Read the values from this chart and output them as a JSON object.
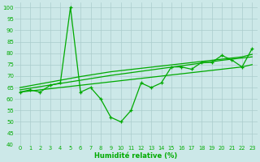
{
  "xlabel": "Humidité relative (%)",
  "bg_color": "#cce8e8",
  "grid_color": "#aacccc",
  "line_color": "#00aa00",
  "xlim": [
    -0.5,
    23.5
  ],
  "ylim": [
    40,
    102
  ],
  "yticks": [
    40,
    45,
    50,
    55,
    60,
    65,
    70,
    75,
    80,
    85,
    90,
    95,
    100
  ],
  "xticks": [
    0,
    1,
    2,
    3,
    4,
    5,
    6,
    7,
    8,
    9,
    10,
    11,
    12,
    13,
    14,
    15,
    16,
    17,
    18,
    19,
    20,
    21,
    22,
    23
  ],
  "series": {
    "marked": [
      63,
      64,
      63,
      66,
      67,
      100,
      63,
      65,
      60,
      52,
      50,
      55,
      67,
      65,
      67,
      74,
      74,
      73,
      76,
      76,
      79,
      77,
      74,
      82
    ],
    "trend1": [
      63,
      63.5,
      64,
      64.5,
      65,
      65.5,
      66,
      66.5,
      67,
      67.5,
      68,
      68.5,
      69,
      69.5,
      70,
      70.5,
      71,
      71.5,
      72,
      72.5,
      73,
      73.5,
      74,
      75
    ],
    "trend2": [
      64,
      64.7,
      65.4,
      66.1,
      66.8,
      67.5,
      68.2,
      68.9,
      69.6,
      70.3,
      70.9,
      71.5,
      72.1,
      72.7,
      73.3,
      73.9,
      74.5,
      75.1,
      75.7,
      76.3,
      76.9,
      77.4,
      77.9,
      78.4
    ],
    "trend3": [
      65,
      65.8,
      66.6,
      67.4,
      68.2,
      69.0,
      69.8,
      70.5,
      71.2,
      71.9,
      72.4,
      72.9,
      73.4,
      73.9,
      74.4,
      74.9,
      75.4,
      75.9,
      76.4,
      76.9,
      77.4,
      77.9,
      78.4,
      79.5
    ]
  }
}
